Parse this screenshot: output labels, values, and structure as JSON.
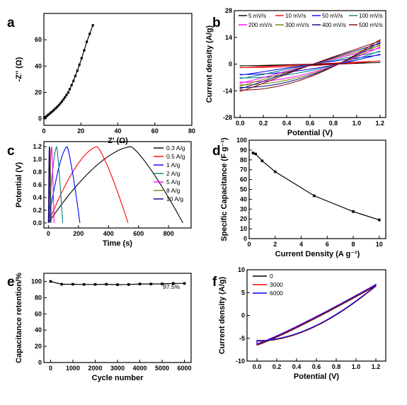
{
  "chart_data": [
    {
      "panel": "a",
      "type": "scatter",
      "xlabel": "Z' (Ω)",
      "ylabel": "-Z'' (Ω)",
      "xlim": [
        0,
        80
      ],
      "ylim": [
        -5,
        80
      ],
      "xticks": [
        "0",
        "20",
        "40",
        "60",
        "80"
      ],
      "yticks": [
        "0",
        "20",
        "40",
        "60"
      ],
      "series": [
        {
          "x": [
            0.3,
            0.8,
            1.5,
            2.3,
            3.1,
            3.9,
            4.8,
            5.6,
            6.5,
            7.3,
            8.2,
            9.0,
            9.8,
            10.6,
            11.4,
            12.2,
            13.1,
            14.0,
            15.0,
            16.0,
            17.0,
            18.1,
            19.2,
            20.4,
            21.8,
            23.2,
            24.8,
            26.5
          ],
          "y": [
            0.5,
            1.2,
            2.0,
            2.9,
            3.8,
            4.8,
            5.8,
            6.9,
            8.0,
            9.2,
            10.5,
            11.8,
            13.2,
            14.7,
            16.3,
            18.0,
            19.8,
            22.5,
            25.5,
            28.8,
            32.5,
            36.5,
            41.0,
            46.0,
            52.0,
            58.5,
            64.5,
            71.0
          ]
        }
      ]
    },
    {
      "panel": "b",
      "type": "line",
      "xlabel": "Potential (V)",
      "ylabel": "Current density (A/g)",
      "xlim": [
        -0.05,
        1.25
      ],
      "ylim": [
        -28,
        28
      ],
      "xticks": [
        "0.0",
        "0.2",
        "0.4",
        "0.6",
        "0.8",
        "1.0",
        "1.2"
      ],
      "yticks": [
        "-28",
        "-14",
        "0",
        "14",
        "28"
      ],
      "legend_position": "top",
      "series": [
        {
          "name": "5 mV/s",
          "color": "#000000",
          "i_max": 1.0
        },
        {
          "name": "10 mV/s",
          "color": "#ff0000",
          "i_max": 2.0
        },
        {
          "name": "50 mV/s",
          "color": "#0000ff",
          "i_max": 6.0
        },
        {
          "name": "100 mV/s",
          "color": "#008080",
          "i_max": 8.0
        },
        {
          "name": "200 mV/s",
          "color": "#ff00ff",
          "i_max": 10.5
        },
        {
          "name": "300 mV/s",
          "color": "#808000",
          "i_max": 12.0
        },
        {
          "name": "400 mV/s",
          "color": "#000080",
          "i_max": 13.5
        },
        {
          "name": "500 mV/s",
          "color": "#800000",
          "i_max": 15.0
        }
      ]
    },
    {
      "panel": "c",
      "type": "line",
      "xlabel": "Time (s)",
      "ylabel": "Potential (V)",
      "xlim": [
        -30,
        950
      ],
      "ylim": [
        -0.08,
        1.28
      ],
      "xticks": [
        "0",
        "200",
        "400",
        "600",
        "800"
      ],
      "yticks": [
        "0.0",
        "0.2",
        "0.4",
        "0.6",
        "0.8",
        "1.0",
        "1.2"
      ],
      "legend_position": "top-right",
      "series": [
        {
          "name": "0.3 A/g",
          "color": "#000000",
          "t_peak": 550,
          "t_end": 895
        },
        {
          "name": "0.5 A/g",
          "color": "#ff0000",
          "t_peak": 325,
          "t_end": 530
        },
        {
          "name": "1 A/g",
          "color": "#0000ff",
          "t_peak": 125,
          "t_end": 210
        },
        {
          "name": "2 A/g",
          "color": "#008080",
          "t_peak": 55,
          "t_end": 95
        },
        {
          "name": "5 A/g",
          "color": "#ff00ff",
          "t_peak": 22,
          "t_end": 38
        },
        {
          "name": "8 A/g",
          "color": "#808000",
          "t_peak": 10,
          "t_end": 20
        },
        {
          "name": "10 A/g",
          "color": "#000080",
          "t_peak": 6,
          "t_end": 13
        }
      ]
    },
    {
      "panel": "d",
      "type": "line",
      "xlabel": "Current Density (A g⁻¹)",
      "ylabel": "Specific Capacitance (F g⁻¹)",
      "xlim": [
        0,
        10.5
      ],
      "ylim": [
        0,
        100
      ],
      "xticks": [
        "0",
        "2",
        "4",
        "6",
        "8",
        "10"
      ],
      "yticks": [
        "0",
        "10",
        "20",
        "30",
        "40",
        "50",
        "60",
        "70",
        "80",
        "90",
        "100"
      ],
      "series": [
        {
          "x": [
            0.3,
            0.5,
            1,
            2,
            5,
            8,
            10
          ],
          "y": [
            87,
            86,
            79,
            68,
            43.5,
            27.5,
            19
          ]
        }
      ]
    },
    {
      "panel": "e",
      "type": "line",
      "xlabel": "Cycle number",
      "ylabel": "Capacitance retention/%",
      "xlim": [
        -300,
        6300
      ],
      "ylim": [
        0,
        110
      ],
      "xticks": [
        "0",
        "1000",
        "2000",
        "3000",
        "4000",
        "5000",
        "6000"
      ],
      "yticks": [
        "0",
        "20",
        "40",
        "60",
        "80",
        "100"
      ],
      "annotation": "97.5%",
      "series": [
        {
          "x": [
            0,
            500,
            1000,
            1500,
            2000,
            2500,
            3000,
            3500,
            4000,
            4500,
            5000,
            5500,
            6000
          ],
          "y": [
            100,
            96.5,
            96.5,
            96.3,
            96.3,
            96.5,
            96.0,
            96.2,
            96.8,
            96.8,
            97.0,
            97.5,
            97.5
          ]
        }
      ]
    },
    {
      "panel": "f",
      "type": "line",
      "xlabel": "Potential (V)",
      "ylabel": "Current density (A/g)",
      "xlim": [
        -0.1,
        1.3
      ],
      "ylim": [
        -10,
        10
      ],
      "xticks": [
        "0.0",
        "0.2",
        "0.4",
        "0.6",
        "0.8",
        "1.0",
        "1.2"
      ],
      "yticks": [
        "-10",
        "-5",
        "0",
        "5",
        "10"
      ],
      "legend_position": "top-left",
      "series": [
        {
          "name": "0",
          "color": "#000000"
        },
        {
          "name": "3000",
          "color": "#ff0000"
        },
        {
          "name": "6000",
          "color": "#0000ff"
        }
      ]
    }
  ],
  "panel_letters": [
    "a",
    "b",
    "c",
    "d",
    "e",
    "f"
  ],
  "colors": {
    "axis": "#000000",
    "line": "#000000"
  }
}
